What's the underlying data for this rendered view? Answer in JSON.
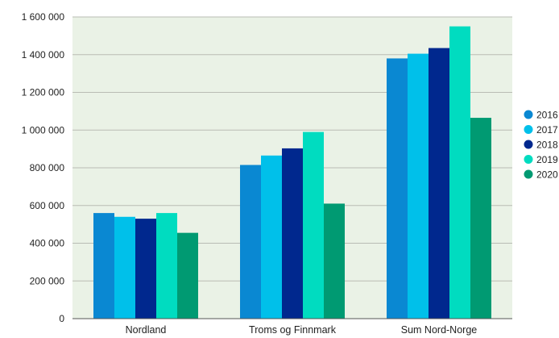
{
  "chart_data": {
    "type": "bar",
    "title": "",
    "xlabel": "",
    "ylabel": "",
    "categories": [
      "Nordland",
      "Troms og Finnmark",
      "Sum Nord-Norge"
    ],
    "series": [
      {
        "name": "2016",
        "color": "#0a88d2",
        "values": [
          560000,
          815000,
          1380000
        ]
      },
      {
        "name": "2017",
        "color": "#00c0ea",
        "values": [
          540000,
          865000,
          1405000
        ]
      },
      {
        "name": "2018",
        "color": "#00288e",
        "values": [
          530000,
          903000,
          1435000
        ]
      },
      {
        "name": "2019",
        "color": "#00dcc0",
        "values": [
          560000,
          990000,
          1550000
        ]
      },
      {
        "name": "2020",
        "color": "#009a72",
        "values": [
          455000,
          610000,
          1065000
        ]
      }
    ],
    "ylim": [
      0,
      1600000
    ],
    "yticks": [
      0,
      200000,
      400000,
      600000,
      800000,
      1000000,
      1200000,
      1400000,
      1600000
    ],
    "ytick_labels": [
      "0",
      "200 000",
      "400 000",
      "600 000",
      "800 000",
      "1 000 000",
      "1 200 000",
      "1 400 000",
      "1 600 000"
    ],
    "grid": true,
    "legend_position": "right",
    "plot_background": "#eaf2e6",
    "grid_color": "#b9bcb4"
  }
}
